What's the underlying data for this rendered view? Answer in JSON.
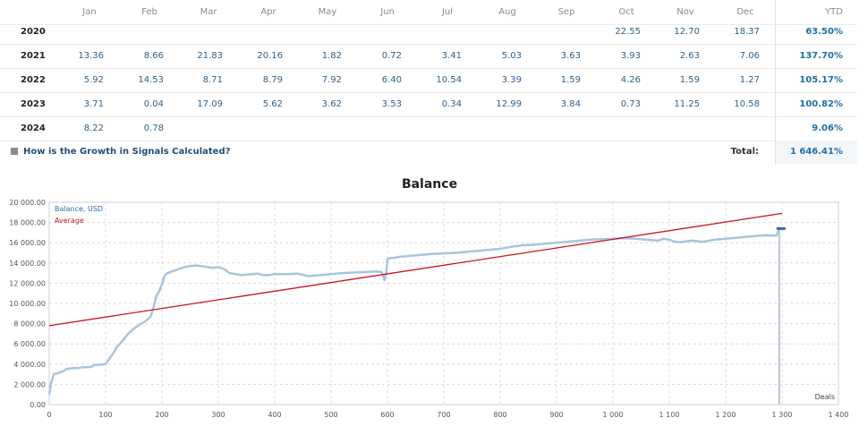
{
  "table": {
    "months": [
      "Jan",
      "Feb",
      "Mar",
      "Apr",
      "May",
      "Jun",
      "Jul",
      "Aug",
      "Sep",
      "Oct",
      "Nov",
      "Dec"
    ],
    "ytd_label": "YTD",
    "rows": [
      {
        "year": "2020",
        "values": [
          "",
          "",
          "",
          "",
          "",
          "",
          "",
          "",
          "",
          "22.55",
          "12.70",
          "18.37"
        ],
        "ytd": "63.50%"
      },
      {
        "year": "2021",
        "values": [
          "13.36",
          "8.66",
          "21.83",
          "20.16",
          "1.82",
          "0.72",
          "3.41",
          "5.03",
          "3.63",
          "3.93",
          "2.63",
          "7.06"
        ],
        "ytd": "137.70%"
      },
      {
        "year": "2022",
        "values": [
          "5.92",
          "14.53",
          "8.71",
          "8.79",
          "7.92",
          "6.40",
          "10.54",
          "3.39",
          "1.59",
          "4.26",
          "1.59",
          "1.27"
        ],
        "ytd": "105.17%"
      },
      {
        "year": "2023",
        "values": [
          "3.71",
          "0.04",
          "17.09",
          "5.62",
          "3.62",
          "3.53",
          "0.34",
          "12.99",
          "3.84",
          "0.73",
          "11.25",
          "10.58"
        ],
        "ytd": "100.82%"
      },
      {
        "year": "2024",
        "values": [
          "8.22",
          "0.78",
          "",
          "",
          "",
          "",
          "",
          "",
          "",
          "",
          "",
          ""
        ],
        "ytd": "9.06%"
      }
    ],
    "faq_link": "How is the Growth in Signals Calculated?",
    "total_label": "Total:",
    "total_value": "1 646.41%"
  },
  "chart_data": {
    "type": "line",
    "title": "Balance",
    "xlabel": "Deals",
    "ylabel": "",
    "xlim": [
      0,
      1400
    ],
    "ylim": [
      0,
      20000
    ],
    "x_ticks": [
      0,
      100,
      200,
      300,
      400,
      500,
      600,
      700,
      800,
      900,
      1000,
      1100,
      1200,
      1300,
      1400
    ],
    "x_tick_labels": [
      "0",
      "100",
      "200",
      "300",
      "400",
      "500",
      "600",
      "700",
      "800",
      "900",
      "1 000",
      "1 100",
      "1 200",
      "1 300",
      "1 400"
    ],
    "y_ticks": [
      0,
      2000,
      4000,
      6000,
      8000,
      10000,
      12000,
      14000,
      16000,
      18000,
      20000
    ],
    "y_tick_labels": [
      "0.00",
      "2 000.00",
      "4 000.00",
      "6 000.00",
      "8 000.00",
      "10 000.00",
      "12 000.00",
      "14 000.00",
      "16 000.00",
      "18 000.00",
      "20 000.00"
    ],
    "grid": true,
    "legend": "top-left",
    "series": [
      {
        "name": "Balance, USD",
        "color": "#a9c4e0",
        "x": [
          0,
          3,
          8,
          15,
          25,
          30,
          40,
          50,
          60,
          65,
          70,
          75,
          80,
          90,
          100,
          105,
          110,
          115,
          120,
          130,
          140,
          150,
          160,
          170,
          180,
          185,
          190,
          195,
          200,
          205,
          210,
          220,
          230,
          240,
          250,
          260,
          270,
          280,
          290,
          300,
          310,
          320,
          330,
          340,
          350,
          360,
          370,
          380,
          390,
          400,
          420,
          440,
          460,
          480,
          500,
          520,
          540,
          560,
          580,
          590,
          595,
          598,
          600,
          605,
          610,
          620,
          640,
          660,
          680,
          700,
          720,
          740,
          760,
          780,
          800,
          820,
          840,
          860,
          880,
          900,
          920,
          940,
          960,
          980,
          1000,
          1020,
          1040,
          1060,
          1080,
          1090,
          1100,
          1110,
          1120,
          1130,
          1140,
          1160,
          1180,
          1200,
          1220,
          1240,
          1260,
          1270,
          1280,
          1290,
          1295
        ],
        "y": [
          1000,
          2000,
          3000,
          3100,
          3300,
          3500,
          3600,
          3600,
          3700,
          3700,
          3700,
          3750,
          3900,
          3950,
          4000,
          4400,
          4800,
          5200,
          5700,
          6300,
          7000,
          7500,
          7900,
          8200,
          8700,
          9600,
          10700,
          11200,
          11900,
          12800,
          13000,
          13200,
          13400,
          13600,
          13700,
          13750,
          13700,
          13600,
          13500,
          13600,
          13400,
          13000,
          12900,
          12800,
          12850,
          12900,
          12950,
          12800,
          12800,
          12900,
          12900,
          12950,
          12700,
          12800,
          12900,
          13000,
          13050,
          13100,
          13150,
          13100,
          12300,
          13100,
          14400,
          14500,
          14500,
          14600,
          14700,
          14800,
          14900,
          14950,
          15000,
          15100,
          15200,
          15300,
          15400,
          15600,
          15750,
          15800,
          15900,
          16000,
          16100,
          16200,
          16300,
          16350,
          16400,
          16450,
          16400,
          16300,
          16200,
          16400,
          16300,
          16100,
          16050,
          16150,
          16200,
          16100,
          16300,
          16400,
          16500,
          16600,
          16700,
          16750,
          16700,
          16700,
          17400
        ]
      },
      {
        "name": "Average",
        "color": "#c8141e",
        "x": [
          0,
          1300
        ],
        "y": [
          7800,
          18900
        ]
      }
    ]
  }
}
